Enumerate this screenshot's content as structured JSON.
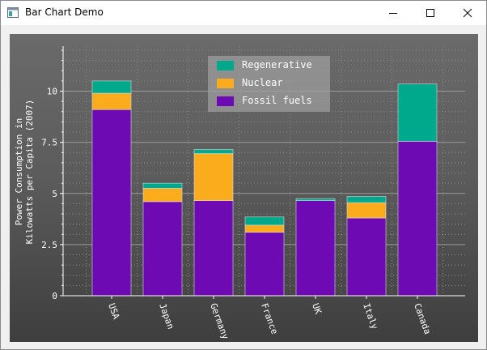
{
  "window": {
    "title": "Bar Chart Demo",
    "controls": {
      "minimize": "minimize",
      "maximize": "maximize",
      "close": "close"
    }
  },
  "chart_data": {
    "type": "bar",
    "stacked": true,
    "categories": [
      "USA",
      "Japan",
      "Germany",
      "France",
      "UK",
      "Italy",
      "Canada"
    ],
    "series": [
      {
        "name": "Fossil fuels",
        "color": "#6e0ab4",
        "values": [
          9.1,
          4.6,
          4.65,
          3.1,
          4.65,
          3.8,
          7.55
        ]
      },
      {
        "name": "Nuclear",
        "color": "#fbac1d",
        "values": [
          0.8,
          0.65,
          2.3,
          0.35,
          0.0,
          0.75,
          0.0
        ]
      },
      {
        "name": "Regenerative",
        "color": "#00a88c",
        "values": [
          0.6,
          0.25,
          0.2,
          0.4,
          0.1,
          0.3,
          2.8
        ]
      }
    ],
    "ylabel": "Power Consumption in\nKilowatts per Capita (2007)",
    "ylim": [
      0,
      12.2
    ],
    "yticks": [
      0,
      2.5,
      5,
      7.5,
      10
    ],
    "ytick_labels": [
      "0",
      "2.5",
      "5",
      "7.5",
      "10"
    ],
    "grid": true,
    "legend_position": "top-center",
    "legend_order": [
      "Regenerative",
      "Nuclear",
      "Fossil fuels"
    ]
  }
}
